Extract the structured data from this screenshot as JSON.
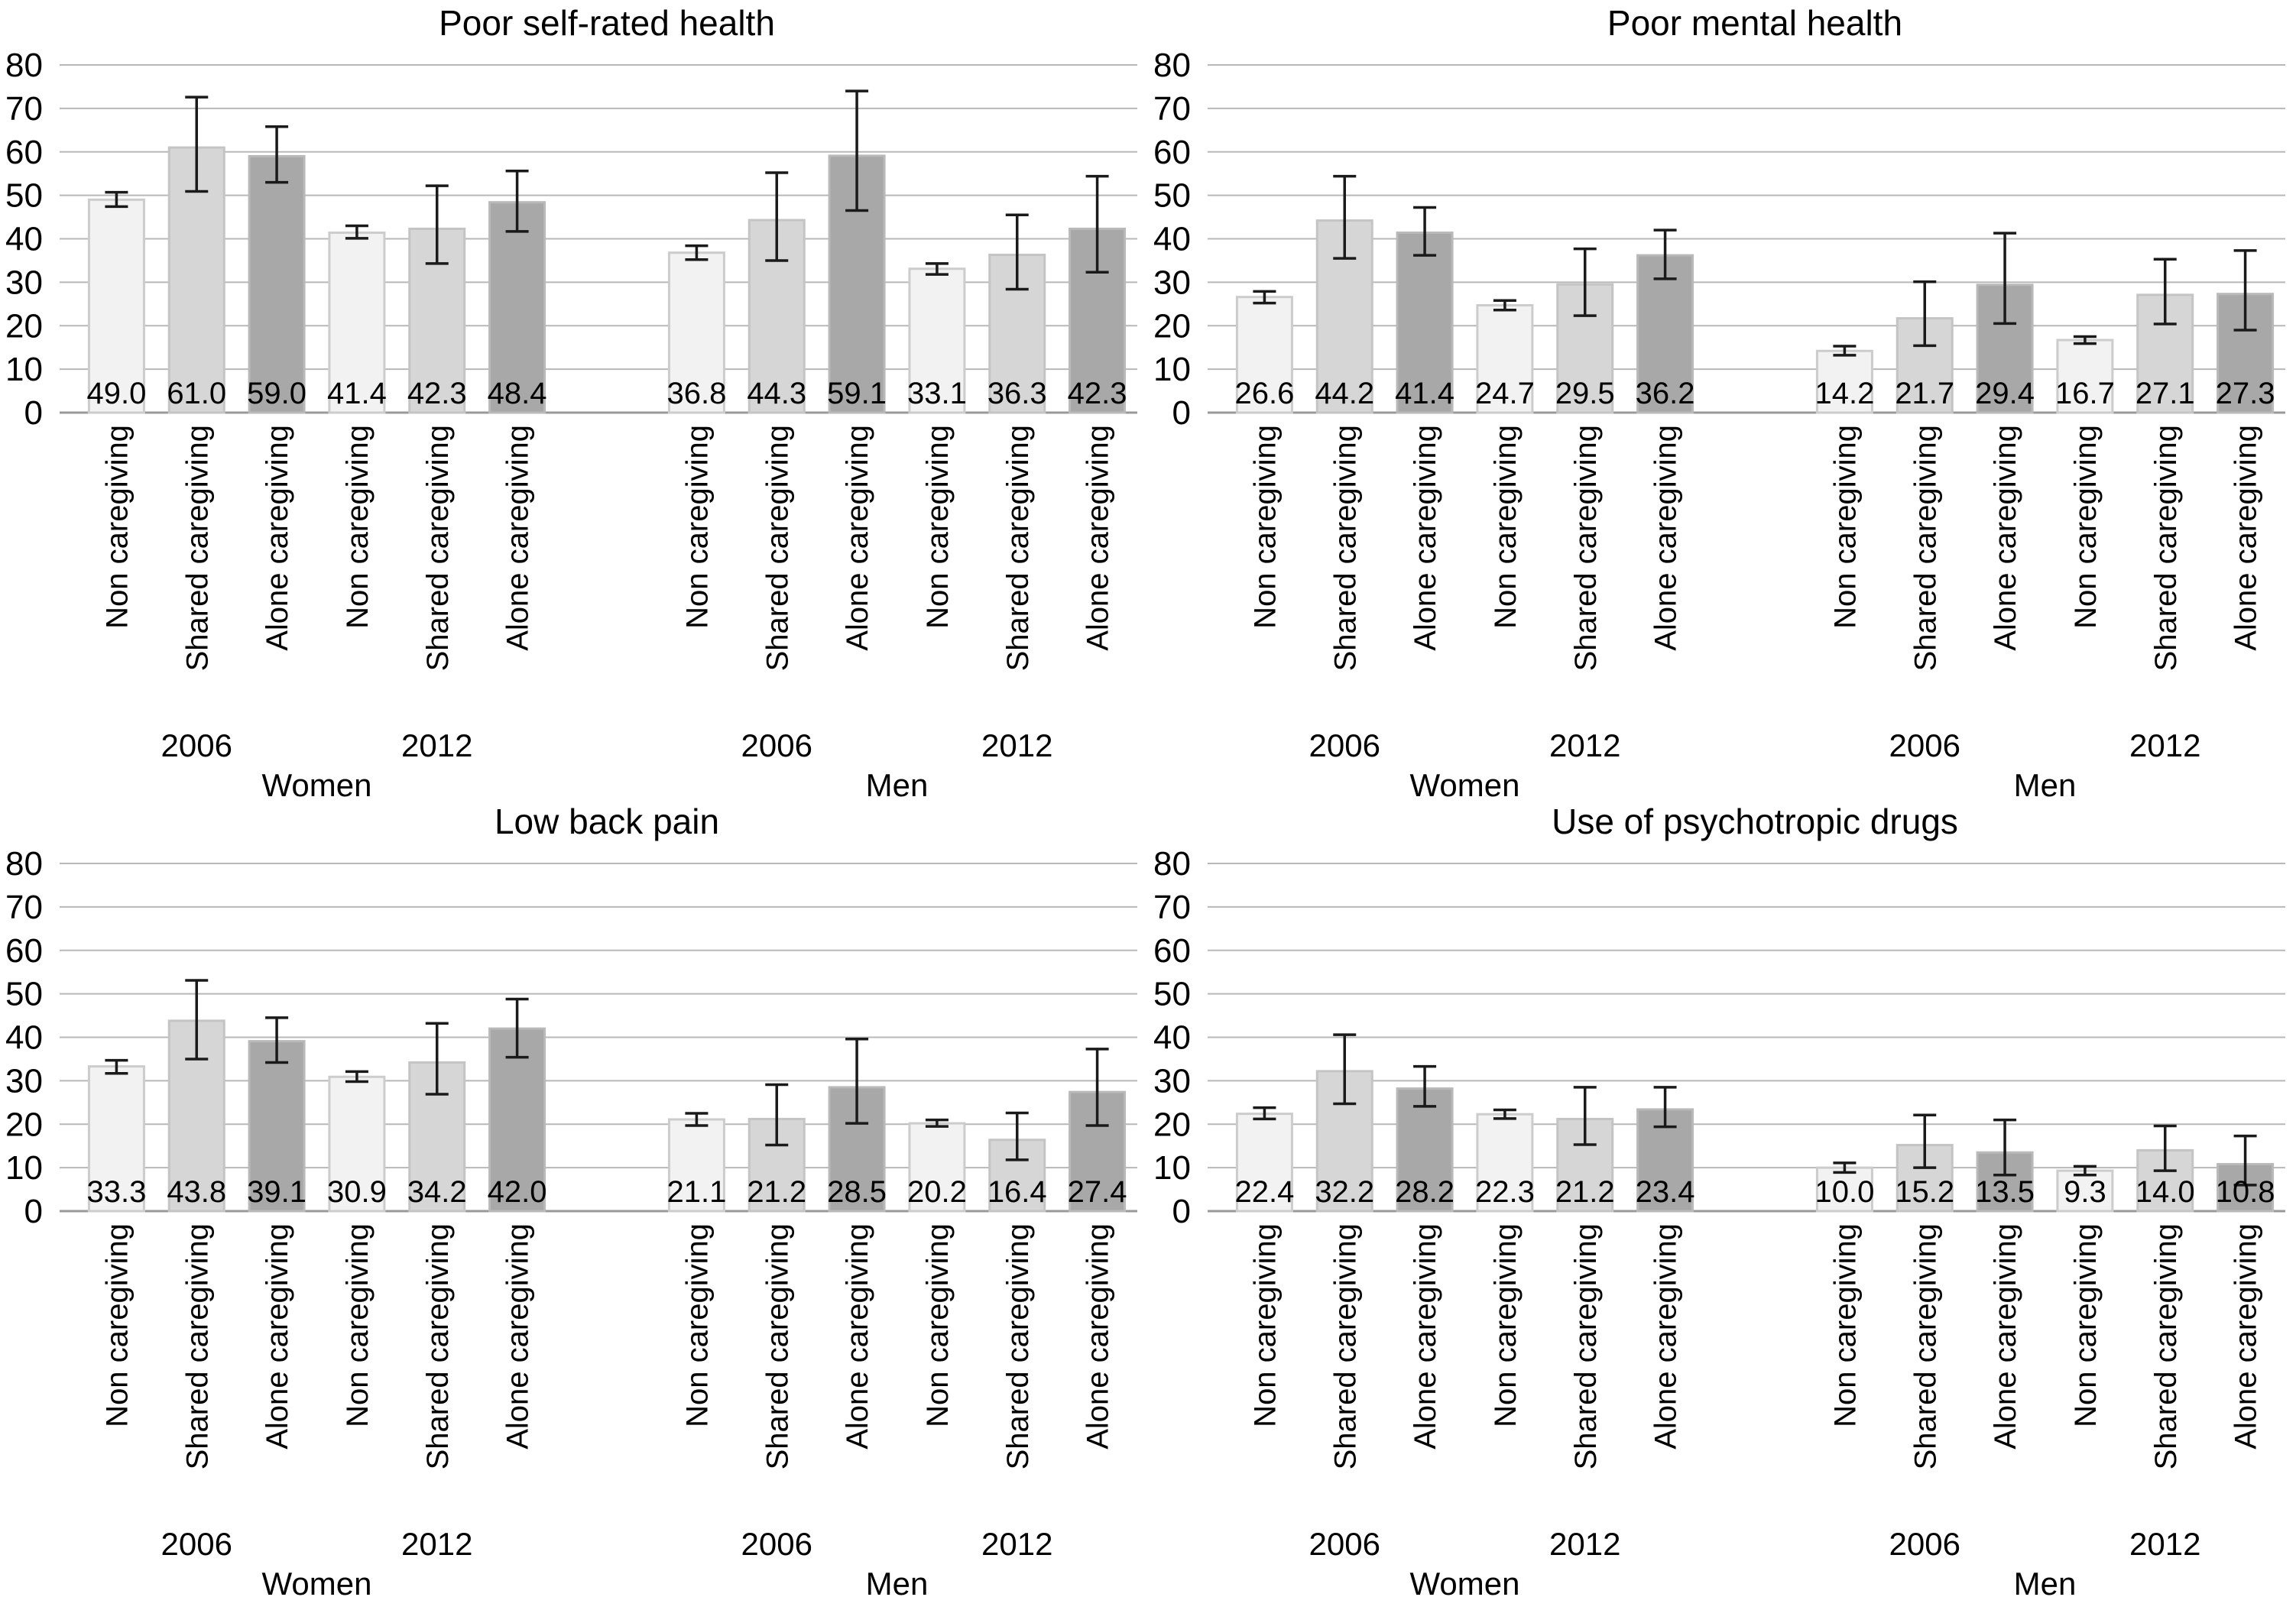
{
  "figure": {
    "background": "#ffffff",
    "y_axis": {
      "ticks": [
        80,
        70,
        60,
        50,
        40,
        30,
        20,
        10,
        0
      ],
      "ylim": [
        0,
        80
      ],
      "grid": true
    },
    "categories": [
      "Non caregiving",
      "Shared caregiving",
      "Alone caregiving"
    ],
    "category_styles": [
      {
        "name": "Non caregiving",
        "fill": "#f2f2f2",
        "stroke": "#cccccc"
      },
      {
        "name": "Shared caregiving",
        "fill": "#d6d6d6",
        "stroke": "#c4c4c4"
      },
      {
        "name": "Alone caregiving",
        "fill": "#a8a8a8",
        "stroke": "#b9b9b9"
      }
    ],
    "grid_color": "#b8b8b8",
    "axis_color": "#999999",
    "error_bar_color": "#1a1a1a",
    "sections": [
      "Women",
      "Men"
    ],
    "years": [
      "2006",
      "2012"
    ]
  },
  "chart_data": [
    {
      "type": "bar",
      "title": "Poor self-rated health",
      "xlabel": "",
      "ylabel": "",
      "ylim": [
        0,
        80
      ],
      "categories": [
        "Non caregiving",
        "Shared caregiving",
        "Alone caregiving"
      ],
      "groups": [
        {
          "section": "Women",
          "year": "2006",
          "values": [
            49.0,
            61.0,
            59.0
          ],
          "ci": [
            [
              47.4,
              50.7
            ],
            [
              50.9,
              72.6
            ],
            [
              53.0,
              65.8
            ]
          ]
        },
        {
          "section": "Women",
          "year": "2012",
          "values": [
            41.4,
            42.3,
            48.4
          ],
          "ci": [
            [
              40.1,
              43.0
            ],
            [
              34.3,
              52.2
            ],
            [
              41.7,
              55.6
            ]
          ]
        },
        {
          "section": "Men",
          "year": "2006",
          "values": [
            36.8,
            44.3,
            59.1
          ],
          "ci": [
            [
              35.2,
              38.4
            ],
            [
              35.0,
              55.2
            ],
            [
              46.5,
              74.0
            ]
          ]
        },
        {
          "section": "Men",
          "year": "2012",
          "values": [
            33.1,
            36.3,
            42.3
          ],
          "ci": [
            [
              31.8,
              34.3
            ],
            [
              28.4,
              45.5
            ],
            [
              32.3,
              54.4
            ]
          ]
        }
      ]
    },
    {
      "type": "bar",
      "title": "Poor mental health",
      "xlabel": "",
      "ylabel": "",
      "ylim": [
        0,
        80
      ],
      "categories": [
        "Non caregiving",
        "Shared caregiving",
        "Alone caregiving"
      ],
      "groups": [
        {
          "section": "Women",
          "year": "2006",
          "values": [
            26.6,
            44.2,
            41.4
          ],
          "ci": [
            [
              25.2,
              27.9
            ],
            [
              35.5,
              54.4
            ],
            [
              36.2,
              47.2
            ]
          ]
        },
        {
          "section": "Women",
          "year": "2012",
          "values": [
            24.7,
            29.5,
            36.2
          ],
          "ci": [
            [
              23.6,
              25.8
            ],
            [
              22.3,
              37.7
            ],
            [
              30.8,
              42.0
            ]
          ]
        },
        {
          "section": "Men",
          "year": "2006",
          "values": [
            14.2,
            21.7,
            29.4
          ],
          "ci": [
            [
              13.2,
              15.3
            ],
            [
              15.4,
              30.1
            ],
            [
              20.5,
              41.3
            ]
          ]
        },
        {
          "section": "Men",
          "year": "2012",
          "values": [
            16.7,
            27.1,
            27.3
          ],
          "ci": [
            [
              15.9,
              17.5
            ],
            [
              20.4,
              35.3
            ],
            [
              19.0,
              37.3
            ]
          ]
        }
      ]
    },
    {
      "type": "bar",
      "title": "Low back pain",
      "xlabel": "",
      "ylabel": "",
      "ylim": [
        0,
        80
      ],
      "categories": [
        "Non caregiving",
        "Shared caregiving",
        "Alone caregiving"
      ],
      "groups": [
        {
          "section": "Women",
          "year": "2006",
          "values": [
            33.3,
            43.8,
            39.1
          ],
          "ci": [
            [
              31.7,
              34.7
            ],
            [
              35.0,
              53.1
            ],
            [
              34.2,
              44.5
            ]
          ]
        },
        {
          "section": "Women",
          "year": "2012",
          "values": [
            30.9,
            34.2,
            42.0
          ],
          "ci": [
            [
              29.8,
              32.1
            ],
            [
              26.9,
              43.2
            ],
            [
              35.4,
              48.8
            ]
          ]
        },
        {
          "section": "Men",
          "year": "2006",
          "values": [
            21.1,
            21.2,
            28.5
          ],
          "ci": [
            [
              19.7,
              22.5
            ],
            [
              15.2,
              29.1
            ],
            [
              20.2,
              39.6
            ]
          ]
        },
        {
          "section": "Men",
          "year": "2012",
          "values": [
            20.2,
            16.4,
            27.4
          ],
          "ci": [
            [
              19.5,
              21.0
            ],
            [
              11.8,
              22.6
            ],
            [
              19.7,
              37.3
            ]
          ]
        }
      ]
    },
    {
      "type": "bar",
      "title": "Use of psychotropic drugs",
      "xlabel": "",
      "ylabel": "",
      "ylim": [
        0,
        80
      ],
      "categories": [
        "Non caregiving",
        "Shared caregiving",
        "Alone caregiving"
      ],
      "groups": [
        {
          "section": "Women",
          "year": "2006",
          "values": [
            22.4,
            32.2,
            28.2
          ],
          "ci": [
            [
              21.2,
              23.8
            ],
            [
              24.7,
              40.6
            ],
            [
              24.1,
              33.3
            ]
          ]
        },
        {
          "section": "Women",
          "year": "2012",
          "values": [
            22.3,
            21.2,
            23.4
          ],
          "ci": [
            [
              21.3,
              23.3
            ],
            [
              15.3,
              28.5
            ],
            [
              19.4,
              28.5
            ]
          ]
        },
        {
          "section": "Men",
          "year": "2006",
          "values": [
            10.0,
            15.2,
            13.5
          ],
          "ci": [
            [
              8.9,
              11.1
            ],
            [
              10.0,
              22.1
            ],
            [
              8.3,
              21.0
            ]
          ]
        },
        {
          "section": "Men",
          "year": "2012",
          "values": [
            9.3,
            14.0,
            10.8
          ],
          "ci": [
            [
              8.3,
              10.3
            ],
            [
              9.3,
              19.6
            ],
            [
              6.0,
              17.3
            ]
          ]
        }
      ]
    }
  ]
}
